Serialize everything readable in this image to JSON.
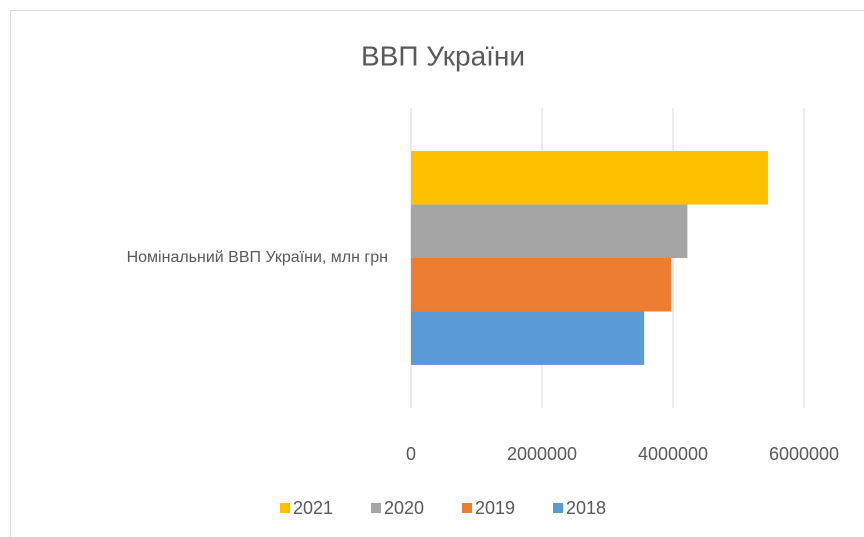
{
  "chart_data": {
    "type": "barh",
    "title": "ВВП України",
    "categories": [
      "Номінальний ВВП України, млн грн"
    ],
    "series": [
      {
        "name": "2021",
        "color": "#ffc000",
        "values": [
          5450000
        ]
      },
      {
        "name": "2020",
        "color": "#a5a5a5",
        "values": [
          4220000
        ]
      },
      {
        "name": "2019",
        "color": "#ed7d31",
        "values": [
          3970000
        ]
      },
      {
        "name": "2018",
        "color": "#5b9bd5",
        "values": [
          3560000
        ]
      }
    ],
    "xlim": [
      0,
      6000000
    ],
    "xticks": [
      0,
      2000000,
      4000000,
      6000000
    ],
    "grid": true,
    "legend": "bottom"
  }
}
